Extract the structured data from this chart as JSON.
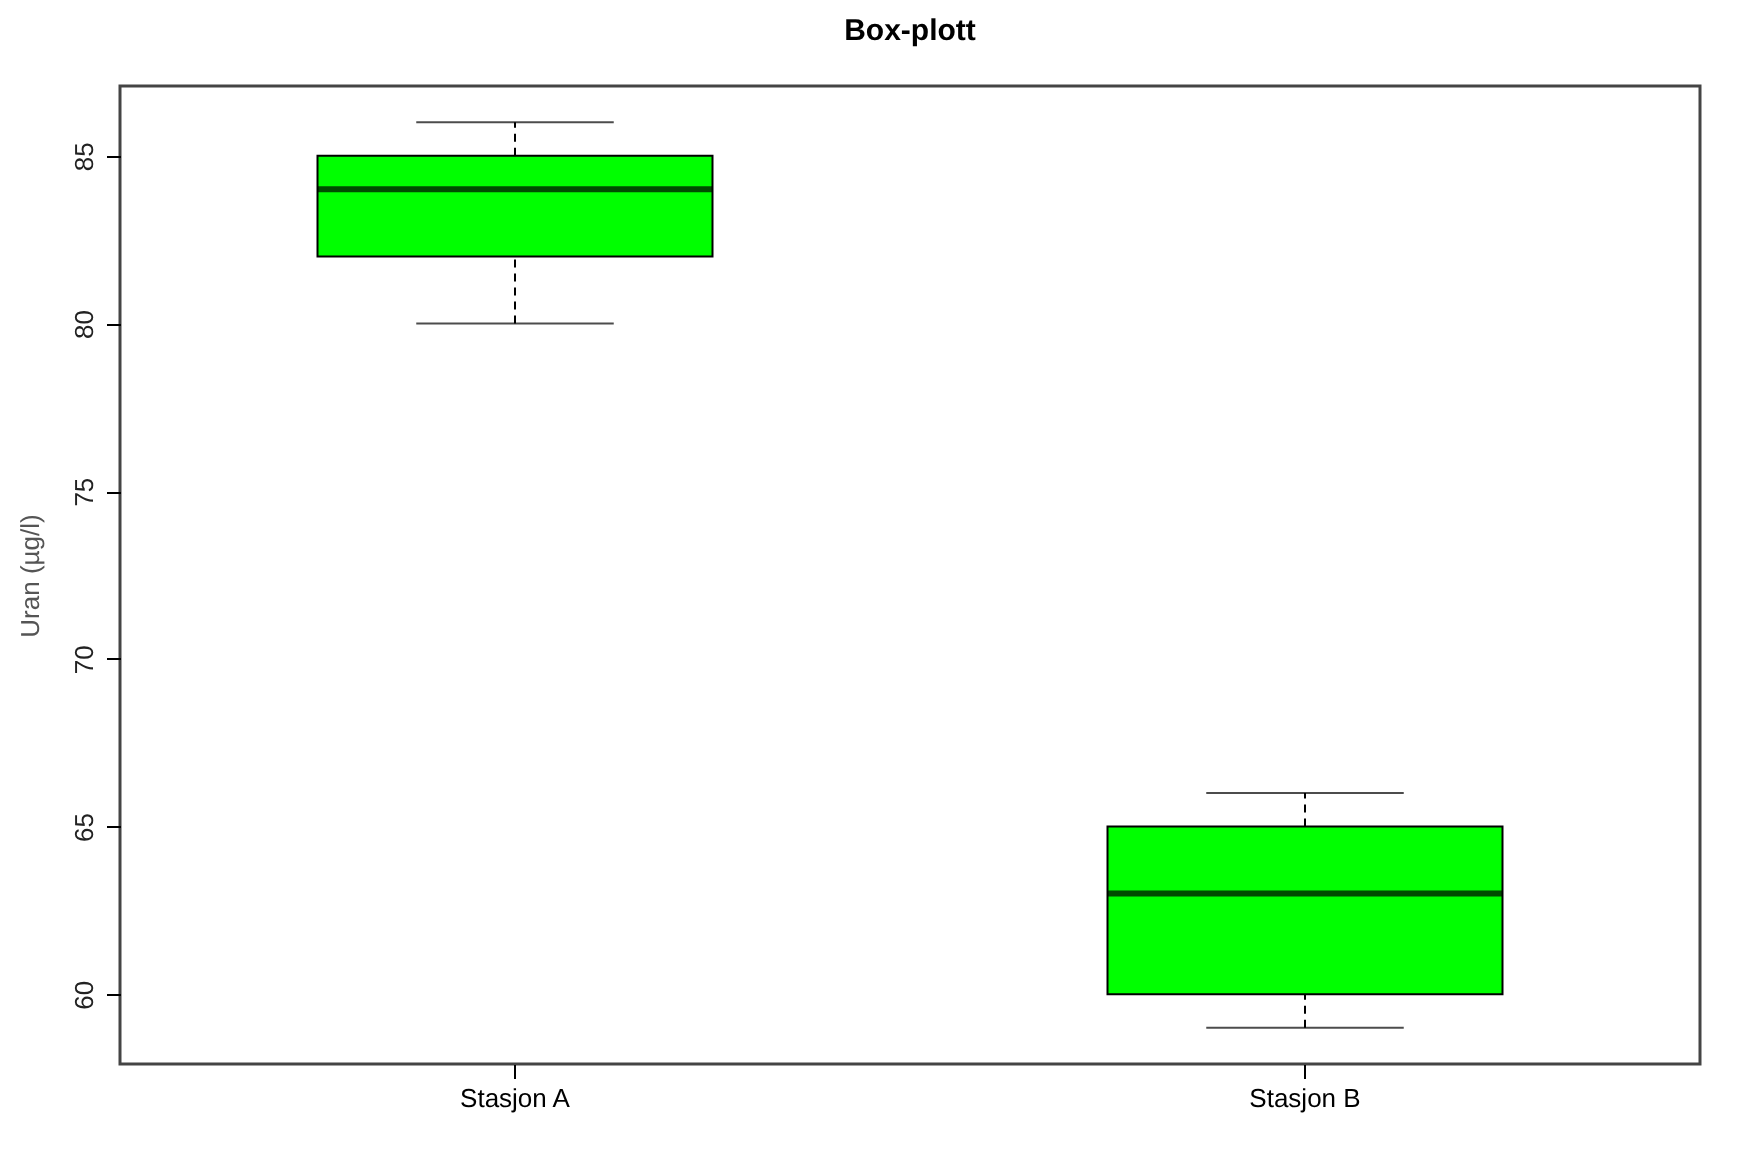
{
  "chart_data": {
    "type": "box",
    "title": "Box-plott",
    "ylabel": "Uran (µg/l)",
    "categories": [
      "Stasjon A",
      "Stasjon B"
    ],
    "series": [
      {
        "color": "#00ff00",
        "boxes": [
          {
            "low": 80,
            "q1": 82,
            "median": 84,
            "q3": 85,
            "high": 86
          },
          {
            "low": 59,
            "q1": 60,
            "median": 63,
            "q3": 65,
            "high": 66
          }
        ]
      }
    ],
    "ylim": [
      57.92,
      87.08
    ],
    "yticks": [
      60,
      65,
      70,
      75,
      80,
      85
    ],
    "grid": false
  }
}
